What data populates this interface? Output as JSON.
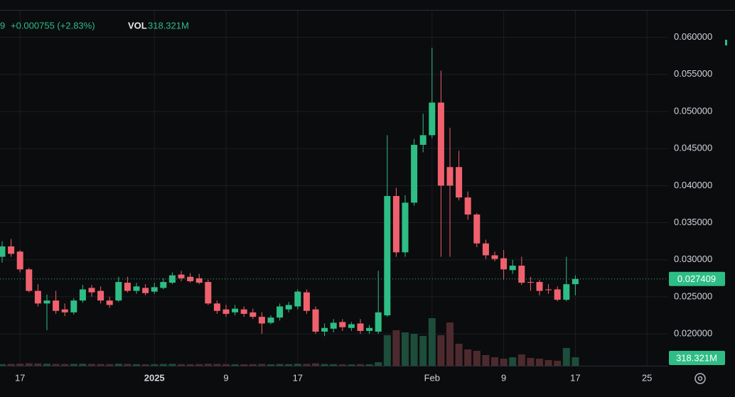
{
  "chart_data": {
    "type": "candlestick",
    "header": {
      "price_fragment": "9",
      "change": "+0.000755 (+2.83%)",
      "volume_prefix": "VOL"
    },
    "categories": [
      null,
      null,
      "17",
      null,
      null,
      null,
      null,
      null,
      null,
      null,
      null,
      null,
      null,
      null,
      null,
      null,
      null,
      "2025",
      null,
      null,
      null,
      null,
      null,
      null,
      null,
      "9",
      null,
      null,
      null,
      null,
      null,
      null,
      null,
      "17",
      null,
      null,
      null,
      null,
      null,
      null,
      null,
      null,
      null,
      null,
      null,
      null,
      null,
      null,
      "Feb",
      null,
      null,
      null,
      null,
      null,
      null,
      null,
      "9",
      null,
      null,
      null,
      null,
      null,
      null,
      null,
      "17",
      null,
      null,
      null,
      null,
      null,
      null,
      null,
      "25",
      null,
      null
    ],
    "open": [
      0.0304,
      0.0318,
      0.0311,
      0.0287,
      0.0258,
      0.0241,
      0.0245,
      0.0233,
      0.0229,
      0.0245,
      0.0262,
      0.0258,
      0.0245,
      0.0245,
      0.0269,
      0.0258,
      0.0262,
      0.0257,
      0.0262,
      0.0269,
      0.028,
      0.0277,
      0.0275,
      0.027,
      0.0241,
      0.0233,
      0.0229,
      0.0233,
      0.0229,
      0.0223,
      0.0215,
      0.0222,
      0.0233,
      0.0237,
      0.0256,
      0.0233,
      0.0203,
      0.0207,
      0.0216,
      0.0208,
      0.0214,
      0.0204,
      0.0203,
      0.0225,
      0.0386,
      0.031,
      0.0377,
      0.0455,
      0.0468,
      0.0512,
      0.0425,
      0.0425,
      0.0384,
      0.0361,
      0.0322,
      0.0306,
      0.0302,
      0.0286,
      0.0292,
      0.027,
      0.027,
      0.026,
      0.026,
      0.0246,
      0.0267,
      null,
      null,
      null,
      null,
      null,
      null,
      null,
      null,
      null,
      null
    ],
    "high": [
      0.0325,
      0.0328,
      0.0313,
      0.0289,
      0.0267,
      0.0253,
      0.0258,
      0.0241,
      0.0248,
      0.0266,
      0.0266,
      0.0264,
      0.025,
      0.0277,
      0.0277,
      0.0269,
      0.0267,
      0.0269,
      0.0275,
      0.0283,
      0.0285,
      0.0282,
      0.0281,
      0.0273,
      0.0245,
      0.0239,
      0.0239,
      0.0237,
      0.0234,
      0.0229,
      0.0225,
      0.0241,
      0.0243,
      0.026,
      0.026,
      0.0237,
      0.0214,
      0.022,
      0.022,
      0.0216,
      0.022,
      0.0212,
      0.0285,
      0.0468,
      0.0397,
      0.0387,
      0.0463,
      0.0497,
      0.0586,
      0.0555,
      0.0478,
      0.0447,
      0.0392,
      0.0363,
      0.0327,
      0.0311,
      0.0313,
      0.03,
      0.0304,
      0.0277,
      0.0273,
      0.0267,
      0.0264,
      0.0304,
      0.0279,
      null,
      null,
      null,
      null,
      null,
      null,
      null,
      null,
      null,
      null
    ],
    "low": [
      0.0296,
      0.0304,
      0.0283,
      0.0256,
      0.0237,
      0.0205,
      0.0227,
      0.0224,
      0.0226,
      0.0242,
      0.025,
      0.0241,
      0.0235,
      0.0243,
      0.0256,
      0.0254,
      0.0252,
      0.0254,
      0.026,
      0.0267,
      0.0271,
      0.0269,
      0.0267,
      0.0239,
      0.0227,
      0.0223,
      0.0225,
      0.0223,
      0.022,
      0.02,
      0.0213,
      0.0218,
      0.0229,
      0.0233,
      0.0227,
      0.02,
      0.0197,
      0.0202,
      0.0204,
      0.0204,
      0.02,
      0.02,
      0.02,
      0.0223,
      0.0304,
      0.0304,
      0.0373,
      0.0445,
      0.0464,
      0.0304,
      0.0304,
      0.038,
      0.0354,
      0.0317,
      0.0301,
      0.0298,
      0.0273,
      0.0281,
      0.0266,
      0.0258,
      0.0252,
      0.0254,
      0.0244,
      0.0244,
      0.0252,
      null,
      null,
      null,
      null,
      null,
      null,
      null,
      null,
      null,
      null
    ],
    "close": [
      0.0318,
      0.0308,
      0.0287,
      0.0258,
      0.0241,
      0.0245,
      0.0231,
      0.0229,
      0.0245,
      0.026,
      0.0256,
      0.0245,
      0.0239,
      0.027,
      0.0258,
      0.0264,
      0.0255,
      0.0263,
      0.027,
      0.0279,
      0.0275,
      0.0271,
      0.0269,
      0.0241,
      0.0231,
      0.0227,
      0.0234,
      0.0227,
      0.0223,
      0.0214,
      0.0222,
      0.0237,
      0.0239,
      0.0257,
      0.0231,
      0.0203,
      0.0208,
      0.0215,
      0.0209,
      0.0213,
      0.0204,
      0.0208,
      0.0229,
      0.0386,
      0.031,
      0.0377,
      0.0455,
      0.0468,
      0.0512,
      0.04,
      0.04,
      0.0384,
      0.0361,
      0.0322,
      0.0306,
      0.0301,
      0.0287,
      0.0292,
      0.0269,
      0.0269,
      0.0258,
      0.0259,
      0.0246,
      0.0267,
      0.027409,
      null,
      null,
      null,
      null,
      null,
      null,
      null,
      null,
      null,
      null
    ],
    "volume": {
      "values": [
        60,
        70,
        80,
        90,
        85,
        75,
        70,
        65,
        70,
        75,
        70,
        65,
        60,
        75,
        70,
        60,
        55,
        60,
        65,
        70,
        60,
        55,
        60,
        75,
        70,
        60,
        55,
        55,
        60,
        70,
        55,
        65,
        60,
        75,
        70,
        90,
        65,
        60,
        55,
        50,
        60,
        55,
        133,
        1140,
        1326,
        1246,
        1193,
        1113,
        1776,
        1140,
        1617,
        822,
        610,
        557,
        398,
        318,
        265,
        318,
        424,
        292,
        265,
        212,
        186,
        663,
        318.321,
        null,
        null,
        null,
        null,
        null,
        null,
        null,
        null,
        null,
        null
      ],
      "value_labels": [
        null,
        null,
        null,
        null,
        null,
        null,
        null,
        null,
        null,
        null,
        null,
        null,
        null,
        null,
        null,
        null,
        null,
        null,
        null,
        null,
        null,
        null,
        null,
        null,
        null,
        null,
        null,
        null,
        null,
        null,
        null,
        null,
        null,
        null,
        null,
        null,
        null,
        null,
        null,
        null,
        null,
        null,
        null,
        null,
        null,
        null,
        null,
        null,
        null,
        null,
        null,
        null,
        null,
        null,
        null,
        null,
        null,
        null,
        null,
        null,
        null,
        null,
        null,
        null,
        "318.321M",
        null,
        null,
        null,
        null,
        null,
        null,
        null,
        null,
        null,
        null
      ]
    },
    "ylim": [
      0.0157,
      0.0636
    ],
    "yticks": [
      {
        "value": 0.02,
        "label": "0.020000"
      },
      {
        "value": 0.025,
        "label": "0.025000"
      },
      {
        "value": 0.03,
        "label": "0.030000"
      },
      {
        "value": 0.035,
        "label": "0.035000"
      },
      {
        "value": 0.04,
        "label": "0.040000"
      },
      {
        "value": 0.045,
        "label": "0.045000"
      },
      {
        "value": 0.05,
        "label": "0.050000"
      },
      {
        "value": 0.055,
        "label": "0.055000"
      },
      {
        "value": 0.06,
        "label": "0.060000"
      }
    ],
    "grid": true,
    "up_color": "#2ebd85",
    "down_color": "#f0616d",
    "volume_up_color": "#1d4d3b",
    "volume_down_color": "#4d2a2e"
  }
}
